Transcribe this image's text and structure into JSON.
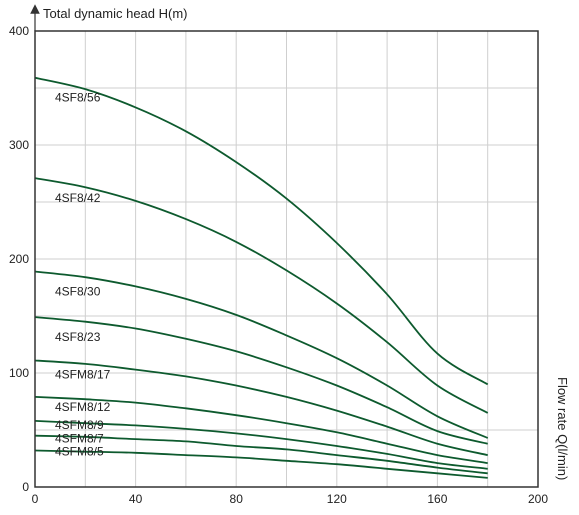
{
  "chart_data": {
    "type": "line",
    "title": "",
    "ylabel": "Total dynamic head H(m)",
    "xlabel": "Flow rate Q(l/min)",
    "xlim": [
      0,
      200
    ],
    "ylim": [
      0,
      400
    ],
    "xticks": [
      0,
      40,
      80,
      120,
      160,
      200
    ],
    "yticks": [
      0,
      100,
      200,
      300,
      400
    ],
    "grid": true,
    "line_color": "#0d5a2e",
    "grid_color": "#cfcfcf",
    "frame_color": "#333333",
    "series": [
      {
        "name": "4SF8/56",
        "x": [
          0,
          20,
          40,
          60,
          80,
          100,
          120,
          140,
          160,
          180
        ],
        "y": [
          359,
          349,
          333,
          312,
          285,
          253,
          214,
          169,
          117,
          90
        ]
      },
      {
        "name": "4SF8/42",
        "x": [
          0,
          20,
          40,
          60,
          80,
          100,
          120,
          140,
          160,
          180
        ],
        "y": [
          271,
          263,
          251,
          235,
          215,
          190,
          161,
          127,
          89,
          65
        ]
      },
      {
        "name": "4SF8/30",
        "x": [
          0,
          20,
          40,
          60,
          80,
          100,
          120,
          140,
          160,
          180
        ],
        "y": [
          189,
          184,
          176,
          165,
          151,
          133,
          113,
          89,
          62,
          43
        ]
      },
      {
        "name": "4SF8/23",
        "x": [
          0,
          20,
          40,
          60,
          80,
          100,
          120,
          140,
          160,
          180
        ],
        "y": [
          149,
          145,
          139,
          130,
          119,
          105,
          89,
          70,
          49,
          38
        ]
      },
      {
        "name": "4SFM8/17",
        "x": [
          0,
          20,
          40,
          60,
          80,
          100,
          120,
          140,
          160,
          180
        ],
        "y": [
          111,
          108,
          103,
          97,
          89,
          79,
          67,
          53,
          38,
          28
        ]
      },
      {
        "name": "4SFM8/12",
        "x": [
          0,
          20,
          40,
          60,
          80,
          100,
          120,
          140,
          160,
          180
        ],
        "y": [
          79,
          77,
          74,
          69,
          63,
          56,
          48,
          38,
          28,
          21
        ]
      },
      {
        "name": "4SFM8/9",
        "x": [
          0,
          20,
          40,
          60,
          80,
          100,
          120,
          140,
          160,
          180
        ],
        "y": [
          58,
          56,
          54,
          51,
          47,
          42,
          36,
          29,
          21,
          16
        ]
      },
      {
        "name": "4SFM8/7",
        "x": [
          0,
          20,
          40,
          60,
          80,
          100,
          120,
          140,
          160,
          180
        ],
        "y": [
          45,
          44,
          42,
          40,
          36,
          33,
          28,
          23,
          17,
          12
        ]
      },
      {
        "name": "4SFM8/5",
        "x": [
          0,
          20,
          40,
          60,
          80,
          100,
          120,
          140,
          160,
          180
        ],
        "y": [
          32,
          31,
          30,
          28,
          26,
          23,
          20,
          16,
          12,
          8
        ]
      }
    ]
  }
}
